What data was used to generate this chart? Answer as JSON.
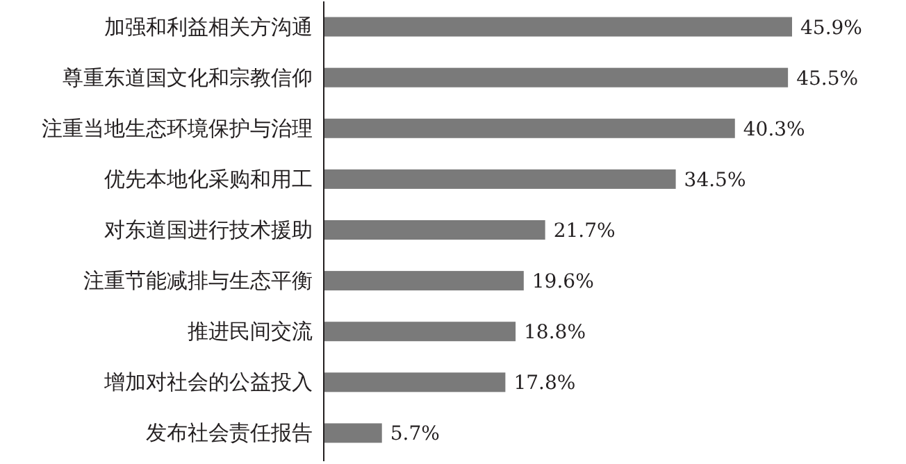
{
  "chart_data": {
    "type": "bar",
    "orientation": "horizontal",
    "categories": [
      "加强和利益相关方沟通",
      "尊重东道国文化和宗教信仰",
      "注重当地生态环境保护与治理",
      "优先本地化采购和用工",
      "对东道国进行技术援助",
      "注重节能减排与生态平衡",
      "推进民间交流",
      "增加对社会的公益投入",
      "发布社会责任报告"
    ],
    "values": [
      45.9,
      45.5,
      40.3,
      34.5,
      21.7,
      19.6,
      18.8,
      17.8,
      5.7
    ],
    "value_labels": [
      "45.9%",
      "45.5%",
      "40.3%",
      "34.5%",
      "21.7%",
      "19.6%",
      "18.8%",
      "17.8%",
      "5.7%"
    ],
    "color": "#7a7a7a"
  }
}
